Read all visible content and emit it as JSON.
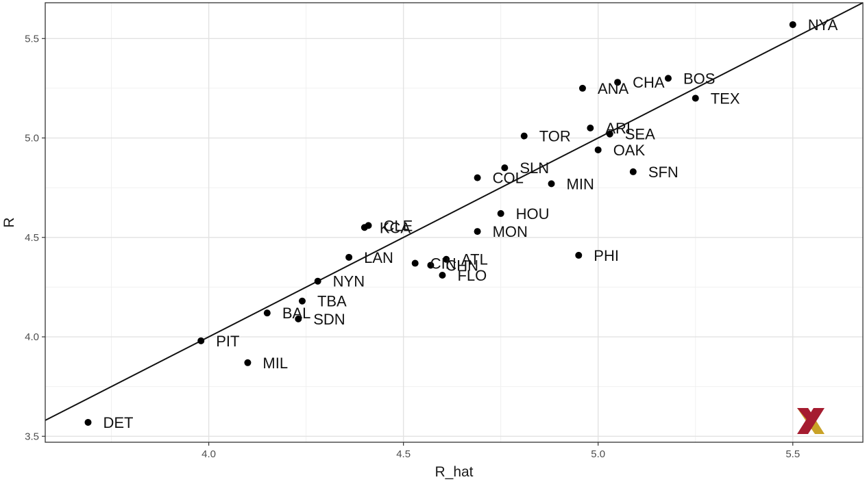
{
  "chart_data": {
    "type": "scatter",
    "xlabel": "R_hat",
    "ylabel": "R",
    "xlim": [
      3.58,
      5.68
    ],
    "ylim": [
      3.47,
      5.68
    ],
    "xticks": [
      4.0,
      4.5,
      5.0,
      5.5
    ],
    "yticks": [
      3.5,
      4.0,
      4.5,
      5.0,
      5.5
    ],
    "xtick_labels": [
      "4.0",
      "4.5",
      "5.0",
      "5.5"
    ],
    "ytick_labels": [
      "3.5",
      "4.0",
      "4.5",
      "5.0",
      "5.5"
    ],
    "grid": true,
    "reference_line": {
      "slope": 1,
      "intercept": 0
    },
    "points": [
      {
        "label": "NYA",
        "x": 5.5,
        "y": 5.57
      },
      {
        "label": "BOS",
        "x": 5.18,
        "y": 5.3
      },
      {
        "label": "CHA",
        "x": 5.05,
        "y": 5.28
      },
      {
        "label": "ANA",
        "x": 4.96,
        "y": 5.25
      },
      {
        "label": "TEX",
        "x": 5.25,
        "y": 5.2
      },
      {
        "label": "ARI",
        "x": 4.98,
        "y": 5.05
      },
      {
        "label": "SEA",
        "x": 5.03,
        "y": 5.02
      },
      {
        "label": "TOR",
        "x": 4.81,
        "y": 5.01
      },
      {
        "label": "OAK",
        "x": 5.0,
        "y": 4.94
      },
      {
        "label": "SLN",
        "x": 4.76,
        "y": 4.85
      },
      {
        "label": "SFN",
        "x": 5.09,
        "y": 4.83
      },
      {
        "label": "COL",
        "x": 4.69,
        "y": 4.8
      },
      {
        "label": "MIN",
        "x": 4.88,
        "y": 4.77
      },
      {
        "label": "HOU",
        "x": 4.75,
        "y": 4.62
      },
      {
        "label": "CLE",
        "x": 4.41,
        "y": 4.56
      },
      {
        "label": "KCA",
        "x": 4.4,
        "y": 4.55
      },
      {
        "label": "MON",
        "x": 4.69,
        "y": 4.53
      },
      {
        "label": "LAN",
        "x": 4.36,
        "y": 4.4
      },
      {
        "label": "PHI",
        "x": 4.95,
        "y": 4.41
      },
      {
        "label": "ATL",
        "x": 4.61,
        "y": 4.39
      },
      {
        "label": "CIN",
        "x": 4.53,
        "y": 4.37
      },
      {
        "label": "CHN",
        "x": 4.57,
        "y": 4.36
      },
      {
        "label": "FLO",
        "x": 4.6,
        "y": 4.31
      },
      {
        "label": "NYN",
        "x": 4.28,
        "y": 4.28
      },
      {
        "label": "TBA",
        "x": 4.24,
        "y": 4.18
      },
      {
        "label": "BAL",
        "x": 4.15,
        "y": 4.12
      },
      {
        "label": "SDN",
        "x": 4.23,
        "y": 4.09
      },
      {
        "label": "PIT",
        "x": 3.98,
        "y": 3.98
      },
      {
        "label": "MIL",
        "x": 4.1,
        "y": 3.87
      },
      {
        "label": "DET",
        "x": 3.69,
        "y": 3.57
      }
    ],
    "logo": {
      "colors": [
        "#a51c30",
        "#c9a227"
      ]
    }
  }
}
